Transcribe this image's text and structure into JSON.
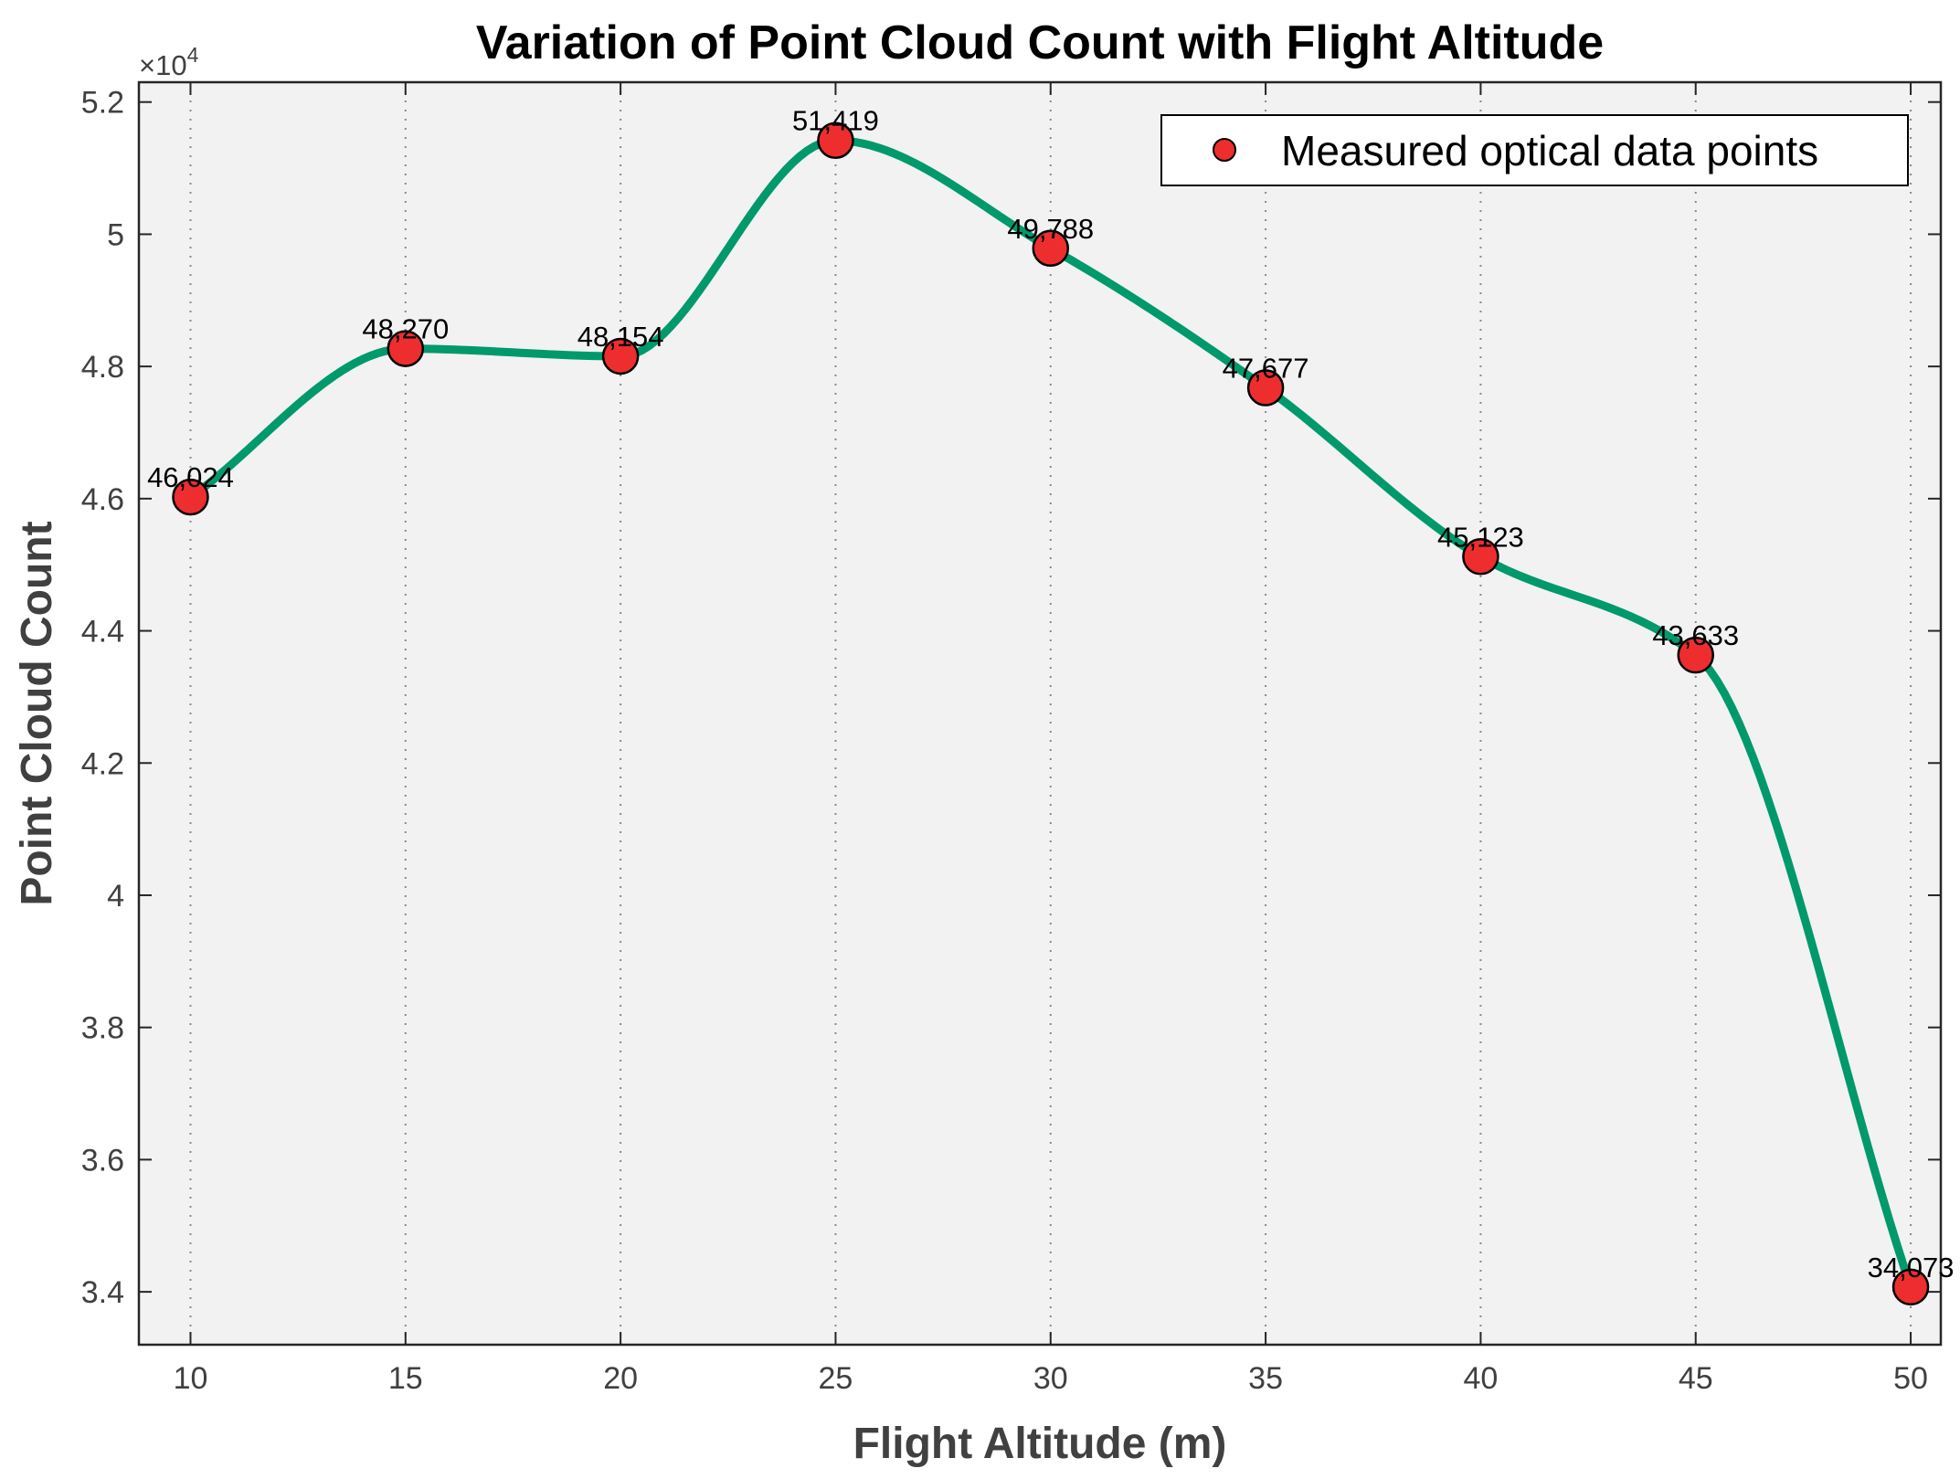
{
  "chart_data": {
    "type": "line",
    "title": "Variation of Point Cloud Count with Flight Altitude",
    "xlabel": "Flight Altitude (m)",
    "ylabel": "Point Cloud Count",
    "y_multiplier_label": "×10",
    "y_multiplier_exponent": "4",
    "xlim": [
      8.8,
      50.7
    ],
    "ylim": [
      33200,
      52300
    ],
    "x_ticks": [
      10,
      15,
      20,
      25,
      30,
      35,
      40,
      45,
      50
    ],
    "y_ticks": [
      34000,
      36000,
      38000,
      40000,
      42000,
      44000,
      46000,
      48000,
      50000,
      52000
    ],
    "y_tick_labels": [
      "3.4",
      "3.6",
      "3.8",
      "4",
      "4.2",
      "4.4",
      "4.6",
      "4.8",
      "5",
      "5.2"
    ],
    "x": [
      10,
      15,
      20,
      25,
      30,
      35,
      40,
      45,
      50
    ],
    "series": [
      {
        "name": "Measured optical data points",
        "values": [
          46024,
          48270,
          48154,
          51419,
          49788,
          47677,
          45123,
          43633,
          34073
        ],
        "data_labels": [
          "46,024",
          "48,270",
          "48,154",
          "51,419",
          "49,788",
          "47,677",
          "45,123",
          "43,633",
          "34,073"
        ]
      }
    ],
    "legend_position": "top-right",
    "grid": "vertical dotted",
    "colors": {
      "curve": "#00996B",
      "marker_fill": "#EE2E2E",
      "marker_edge": "#000000",
      "plot_background": "#F2F2F2"
    }
  }
}
